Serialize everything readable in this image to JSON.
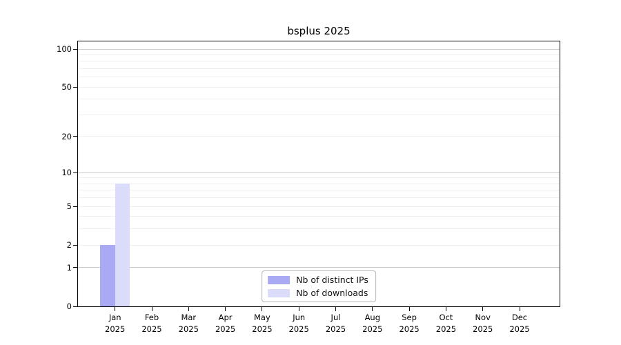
{
  "chart_data": {
    "type": "bar",
    "title": "bsplus 2025",
    "categories": [
      "Jan",
      "Feb",
      "Mar",
      "Apr",
      "May",
      "Jun",
      "Jul",
      "Aug",
      "Sep",
      "Oct",
      "Nov",
      "Dec"
    ],
    "category_year": "2025",
    "series": [
      {
        "name": "Nb of distinct IPs",
        "color": "#a9a9f4",
        "values": [
          2,
          0,
          0,
          0,
          0,
          0,
          0,
          0,
          0,
          0,
          0,
          0
        ]
      },
      {
        "name": "Nb of downloads",
        "color": "#dbdbfa",
        "values": [
          8,
          0,
          0,
          0,
          0,
          0,
          0,
          0,
          0,
          0,
          0,
          0
        ]
      }
    ],
    "y_axis": {
      "ticks": [
        0,
        1,
        2,
        5,
        10,
        20,
        50,
        100
      ],
      "scale": "log1p-base10",
      "ylim": [
        0,
        115
      ]
    },
    "grid": {
      "on": true,
      "major_color": "#cbcbcb",
      "minor_color": "#efefef"
    },
    "legend_position": "bottom-center",
    "colors": {
      "axis": "#000000",
      "background": "#ffffff",
      "bar_distinct_ips": "#a9a9f4",
      "bar_downloads": "#dbdbfa"
    }
  }
}
